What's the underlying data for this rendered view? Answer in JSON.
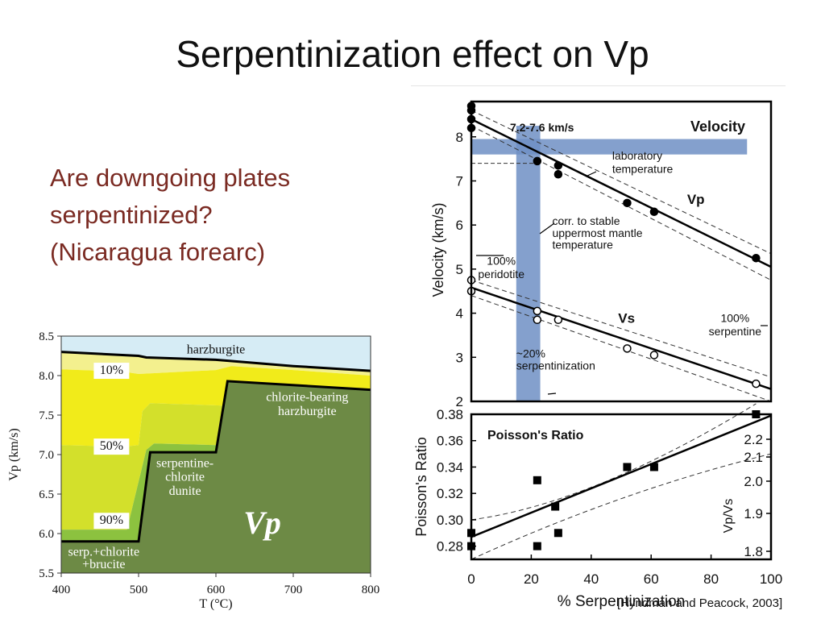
{
  "slide": {
    "title": "Serpentinization effect on Vp",
    "question": [
      "Are downgoing plates",
      "serpentinized?",
      "(Nicaragua forearc)"
    ],
    "citation": "[Hyndman and Peacock, 2003]"
  },
  "chart_data": [
    {
      "type": "area",
      "id": "phase-diagram",
      "xlabel": "T (°C)",
      "ylabel": "Vp (km/s)",
      "xlim": [
        400,
        800
      ],
      "ylim": [
        5.5,
        8.5
      ],
      "xticks": [
        400,
        500,
        600,
        700,
        800
      ],
      "yticks": [
        5.5,
        6.0,
        6.5,
        7.0,
        7.5,
        8.0,
        8.5
      ],
      "tick_labels_x": [
        "400",
        "500",
        "600",
        "700",
        "800"
      ],
      "tick_labels_y": [
        "5.5",
        "6.0",
        "6.5",
        "7.0",
        "7.5",
        "8.0",
        "8.5"
      ],
      "big_label": "Vp",
      "regions": [
        {
          "name": "harzburgite",
          "color": "#d6ecf5",
          "polygon": [
            [
              400,
              8.5
            ],
            [
              800,
              8.5
            ],
            [
              800,
              8.06
            ],
            [
              700,
              8.12
            ],
            [
              600,
              8.2
            ],
            [
              510,
              8.23
            ],
            [
              500,
              8.25
            ],
            [
              400,
              8.3
            ]
          ]
        },
        {
          "name": "10%",
          "color": "#f3f08e",
          "polygon": [
            [
              400,
              8.3
            ],
            [
              500,
              8.25
            ],
            [
              510,
              8.23
            ],
            [
              600,
              8.2
            ],
            [
              700,
              8.12
            ],
            [
              800,
              8.06
            ],
            [
              800,
              8.0
            ],
            [
              700,
              8.07
            ],
            [
              620,
              8.12
            ],
            [
              600,
              8.07
            ],
            [
              500,
              8.02
            ],
            [
              480,
              8.05
            ],
            [
              400,
              8.08
            ]
          ]
        },
        {
          "name": "50%",
          "color": "#f1eb1a",
          "polygon": [
            [
              400,
              8.08
            ],
            [
              480,
              8.05
            ],
            [
              500,
              8.02
            ],
            [
              600,
              8.07
            ],
            [
              620,
              8.12
            ],
            [
              700,
              8.07
            ],
            [
              800,
              8.0
            ],
            [
              800,
              7.82
            ],
            [
              620,
              7.93
            ],
            [
              610,
              7.62
            ],
            [
              515,
              7.65
            ],
            [
              505,
              7.55
            ],
            [
              500,
              7.12
            ],
            [
              480,
              7.1
            ],
            [
              400,
              7.12
            ]
          ]
        },
        {
          "name": "90%",
          "color": "#d3e02b",
          "polygon": [
            [
              400,
              7.12
            ],
            [
              480,
              7.1
            ],
            [
              500,
              7.12
            ],
            [
              505,
              7.55
            ],
            [
              515,
              7.65
            ],
            [
              610,
              7.62
            ],
            [
              600,
              7.12
            ],
            [
              520,
              7.14
            ],
            [
              510,
              7.06
            ],
            [
              485,
              6.05
            ],
            [
              400,
              6.05
            ]
          ]
        },
        {
          "name": "serp-chlorite-brucite",
          "color": "#8cc23f",
          "polygon": [
            [
              400,
              6.05
            ],
            [
              485,
              6.05
            ],
            [
              510,
              7.06
            ],
            [
              520,
              7.14
            ],
            [
              600,
              7.12
            ],
            [
              600,
              7.03
            ],
            [
              518,
              7.03
            ],
            [
              500,
              5.9
            ],
            [
              400,
              5.9
            ]
          ]
        },
        {
          "name": "chlorite-bearing harzburgite",
          "color": "#6d8a45",
          "polygon": [
            [
              400,
              5.9
            ],
            [
              500,
              5.9
            ],
            [
              515,
              7.03
            ],
            [
              600,
              7.03
            ],
            [
              615,
              7.93
            ],
            [
              800,
              7.82
            ],
            [
              800,
              5.5
            ],
            [
              400,
              5.5
            ]
          ]
        }
      ],
      "boundary_lines": [
        {
          "points": [
            [
              400,
              8.3
            ],
            [
              500,
              8.25
            ],
            [
              510,
              8.23
            ],
            [
              600,
              8.2
            ],
            [
              700,
              8.12
            ],
            [
              800,
              8.06
            ]
          ]
        },
        {
          "points": [
            [
              400,
              5.9
            ],
            [
              500,
              5.9
            ],
            [
              515,
              7.03
            ],
            [
              600,
              7.03
            ],
            [
              615,
              7.93
            ],
            [
              800,
              7.82
            ]
          ]
        }
      ],
      "annotations": [
        {
          "text": "harzburgite",
          "x": 600,
          "y": 8.28
        },
        {
          "text": "10%",
          "x": 465,
          "y": 8.02
        },
        {
          "text": "50%",
          "x": 465,
          "y": 7.06
        },
        {
          "text": "90%",
          "x": 465,
          "y": 6.12
        },
        {
          "text": "chlorite-bearing",
          "x": 718,
          "y": 7.68
        },
        {
          "text": "harzburgite",
          "x": 718,
          "y": 7.5
        },
        {
          "text": "serpentine-",
          "x": 560,
          "y": 6.84
        },
        {
          "text": "chlorite",
          "x": 560,
          "y": 6.67
        },
        {
          "text": "dunite",
          "x": 560,
          "y": 6.49
        },
        {
          "text": "serp.+chlorite",
          "x": 455,
          "y": 5.72
        },
        {
          "text": "+brucite",
          "x": 455,
          "y": 5.56
        }
      ]
    },
    {
      "type": "scatter",
      "id": "velocity-plot",
      "xlabel": "% Serpentinization",
      "ylabel": "Velocity (km/s)",
      "xlim": [
        0,
        100
      ],
      "ylim": [
        2,
        8.8
      ],
      "yticks": [
        2,
        3,
        4,
        5,
        6,
        7,
        8
      ],
      "tick_labels_y": [
        "2",
        "3",
        "4",
        "5",
        "6",
        "7",
        "8"
      ],
      "panel_label": "Velocity",
      "series": [
        {
          "name": "Vp",
          "x": [
            0,
            0,
            0,
            0,
            22,
            29,
            29,
            52,
            61,
            95
          ],
          "y": [
            8.7,
            8.6,
            8.4,
            8.2,
            7.45,
            7.35,
            7.15,
            6.5,
            6.3,
            5.25
          ]
        },
        {
          "name": "Vs",
          "x": [
            0,
            0,
            22,
            22,
            29,
            52,
            61,
            95
          ],
          "y": [
            4.75,
            4.5,
            4.05,
            3.85,
            3.85,
            3.2,
            3.05,
            2.4
          ]
        }
      ],
      "fit_lines": [
        {
          "name": "Vp",
          "x": [
            0,
            100
          ],
          "y": [
            8.4,
            5.05
          ]
        },
        {
          "name": "Vs",
          "x": [
            0,
            100
          ],
          "y": [
            4.58,
            2.28
          ]
        }
      ],
      "band": {
        "label_top": "7.2-7.6 km/s",
        "ymin": 7.6,
        "ymax": 7.95,
        "color": "#6e8fc4"
      },
      "vband": {
        "label": "~20%",
        "label2": "serpentinization",
        "xmin": 15,
        "xmax": 23,
        "color": "#6e8fc4"
      },
      "annotations": [
        {
          "text": "laboratory",
          "x": 47,
          "y": 7.48
        },
        {
          "text": "temperature",
          "x": 47,
          "y": 7.18
        },
        {
          "text": "corr. to stable",
          "x": 27,
          "y": 6.0
        },
        {
          "text": "uppermost mantle",
          "x": 27,
          "y": 5.73
        },
        {
          "text": "temperature",
          "x": 27,
          "y": 5.46
        },
        {
          "text": "100%",
          "x": 88,
          "y": 3.8
        },
        {
          "text": "serpentine",
          "x": 88,
          "y": 3.5
        },
        {
          "text": "100%",
          "x": 10,
          "y": 5.1
        },
        {
          "text": "peridotite",
          "x": 10,
          "y": 4.8
        },
        {
          "text": "~20%",
          "x": 15,
          "y": 3.0
        },
        {
          "text": "serpentinization",
          "x": 15,
          "y": 2.72
        }
      ]
    },
    {
      "type": "scatter",
      "id": "poisson-plot",
      "xlabel": "% Serpentinization",
      "ylabel": "Poisson's Ratio",
      "y2label": "Vp/Vs",
      "xlim": [
        0,
        100
      ],
      "ylim": [
        0.27,
        0.38
      ],
      "xticks": [
        0,
        20,
        40,
        60,
        80,
        100
      ],
      "tick_labels_x": [
        "0",
        "20",
        "40",
        "60",
        "80",
        "100"
      ],
      "yticks": [
        0.28,
        0.3,
        0.32,
        0.34,
        0.36,
        0.38
      ],
      "tick_labels_y": [
        "0.28",
        "0.30",
        "0.32",
        "0.34",
        "0.36",
        "0.38"
      ],
      "y2ticks": [
        1.8,
        1.9,
        2.0,
        2.1,
        2.2
      ],
      "tick_labels_y2": [
        "1.8",
        "1.9",
        "2.0",
        "2.1",
        "2.2"
      ],
      "panel_label": "Poisson's Ratio",
      "series": [
        {
          "name": "data",
          "x": [
            0,
            0,
            22,
            22,
            28,
            29,
            52,
            61,
            95
          ],
          "y": [
            0.29,
            0.28,
            0.33,
            0.28,
            0.31,
            0.29,
            0.34,
            0.34,
            0.38
          ]
        }
      ],
      "fit_lines": [
        {
          "x": [
            0,
            100
          ],
          "y": [
            0.287,
            0.379
          ]
        }
      ]
    }
  ]
}
